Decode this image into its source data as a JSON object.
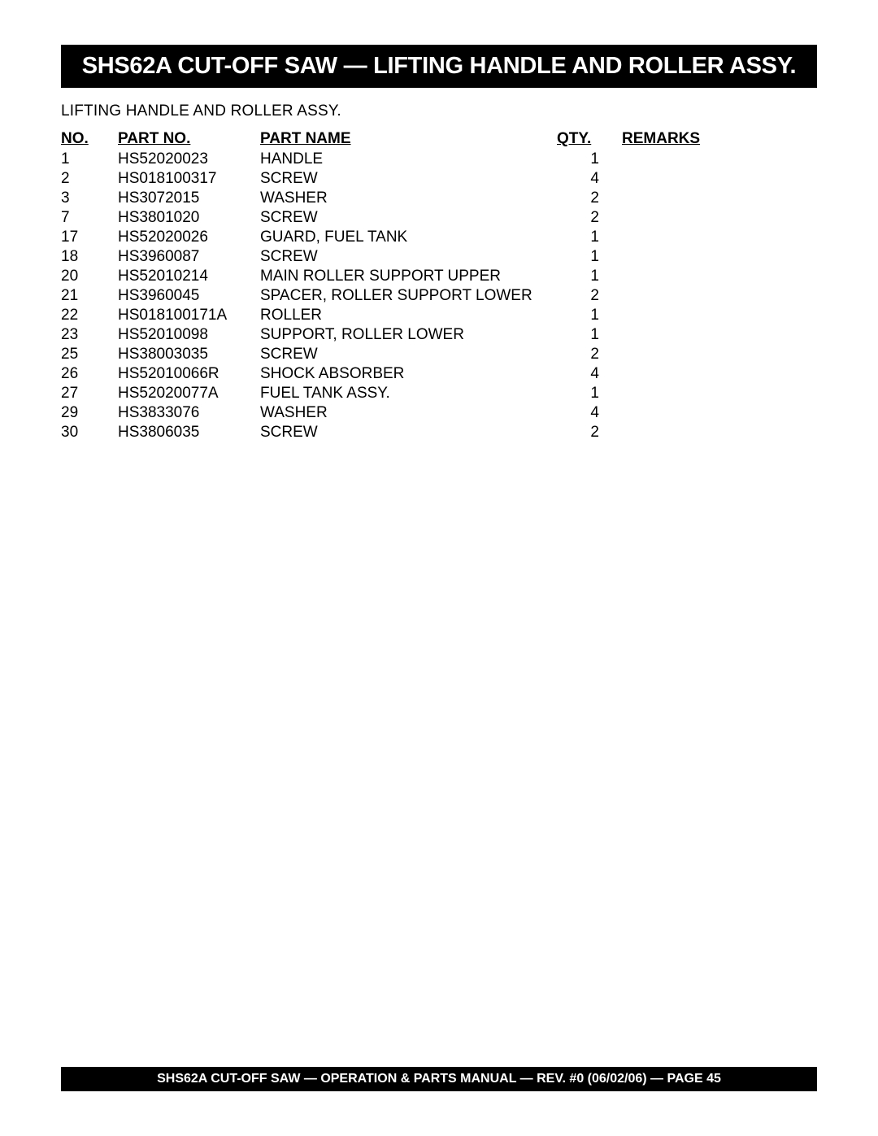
{
  "title": "SHS62A CUT-OFF SAW — LIFTING HANDLE AND ROLLER ASSY.",
  "subtitle": "LIFTING HANDLE AND ROLLER  ASSY.",
  "table": {
    "headers": {
      "no": "NO.",
      "partno": "PART NO.",
      "partname": "PART NAME",
      "qty": "QTY.",
      "remarks": "REMARKS"
    },
    "rows": [
      {
        "no": "1",
        "partno": "HS52020023",
        "partname": "HANDLE",
        "qty": "1",
        "remarks": ""
      },
      {
        "no": "2",
        "partno": "HS018100317",
        "partname": "SCREW",
        "qty": "4",
        "remarks": ""
      },
      {
        "no": "3",
        "partno": "HS3072015",
        "partname": "WASHER",
        "qty": "2",
        "remarks": ""
      },
      {
        "no": "7",
        "partno": "HS3801020",
        "partname": "SCREW",
        "qty": "2",
        "remarks": ""
      },
      {
        "no": "17",
        "partno": "HS52020026",
        "partname": "GUARD, FUEL TANK",
        "qty": "1",
        "remarks": ""
      },
      {
        "no": "18",
        "partno": "HS3960087",
        "partname": "SCREW",
        "qty": "1",
        "remarks": ""
      },
      {
        "no": "20",
        "partno": "HS52010214",
        "partname": "MAIN ROLLER SUPPORT  UPPER",
        "qty": "1",
        "remarks": ""
      },
      {
        "no": "21",
        "partno": "HS3960045",
        "partname": "SPACER, ROLLER SUPPORT  LOWER",
        "qty": "2",
        "remarks": ""
      },
      {
        "no": "22",
        "partno": "HS018100171A",
        "partname": "ROLLER",
        "qty": "1",
        "remarks": ""
      },
      {
        "no": "23",
        "partno": "HS52010098",
        "partname": "SUPPORT, ROLLER LOWER",
        "qty": "1",
        "remarks": ""
      },
      {
        "no": "25",
        "partno": "HS38003035",
        "partname": "SCREW",
        "qty": "2",
        "remarks": ""
      },
      {
        "no": "26",
        "partno": "HS52010066R",
        "partname": "SHOCK ABSORBER",
        "qty": "4",
        "remarks": ""
      },
      {
        "no": "27",
        "partno": "HS52020077A",
        "partname": "FUEL TANK ASSY.",
        "qty": "1",
        "remarks": ""
      },
      {
        "no": "29",
        "partno": "HS3833076",
        "partname": "WASHER",
        "qty": "4",
        "remarks": ""
      },
      {
        "no": "30",
        "partno": "HS3806035",
        "partname": "SCREW",
        "qty": "2",
        "remarks": ""
      }
    ]
  },
  "footer": "SHS62A CUT-OFF SAW  — OPERATION & PARTS MANUAL — REV. #0 (06/02/06) — PAGE 45",
  "colors": {
    "background": "#ffffff",
    "bar_bg": "#000000",
    "bar_fg": "#ffffff",
    "text": "#000000"
  },
  "fonts": {
    "title_size": 29,
    "body_size": 19,
    "footer_size": 16
  }
}
